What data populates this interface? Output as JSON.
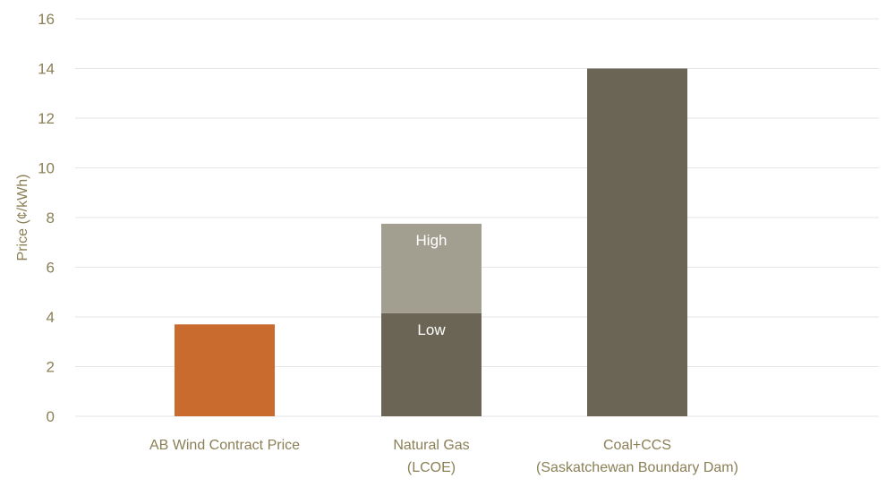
{
  "chart_data": {
    "type": "bar",
    "title": "",
    "ylabel": "Price (¢/kWh)",
    "xlabel": "",
    "ylim": [
      0,
      16
    ],
    "yticks": [
      0,
      2,
      4,
      6,
      8,
      10,
      12,
      14,
      16
    ],
    "grid": true,
    "categories": [
      [
        "AB Wind Contract Price"
      ],
      [
        "Natural Gas",
        "(LCOE)"
      ],
      [
        "Coal+CCS",
        "(Saskatchewan Boundary Dam)"
      ]
    ],
    "bars": [
      {
        "category": "AB Wind Contract Price",
        "segments": [
          {
            "label": "",
            "from": 0,
            "to": 3.7,
            "color": "#c96a2e"
          }
        ]
      },
      {
        "category": "Natural Gas (LCOE)",
        "segments": [
          {
            "label": "Low",
            "from": 0,
            "to": 4.15,
            "color": "#6b6555"
          },
          {
            "label": "High",
            "from": 4.15,
            "to": 7.75,
            "color": "#a29f91"
          }
        ]
      },
      {
        "category": "Coal+CCS (Saskatchewan Boundary Dam)",
        "segments": [
          {
            "label": "",
            "from": 0,
            "to": 14,
            "color": "#6b6555"
          }
        ]
      }
    ],
    "colors": {
      "text": "#8a7f55",
      "grid": "#e6e6e6",
      "wind": "#c96a2e",
      "dark": "#6b6555",
      "light": "#a29f91"
    }
  }
}
